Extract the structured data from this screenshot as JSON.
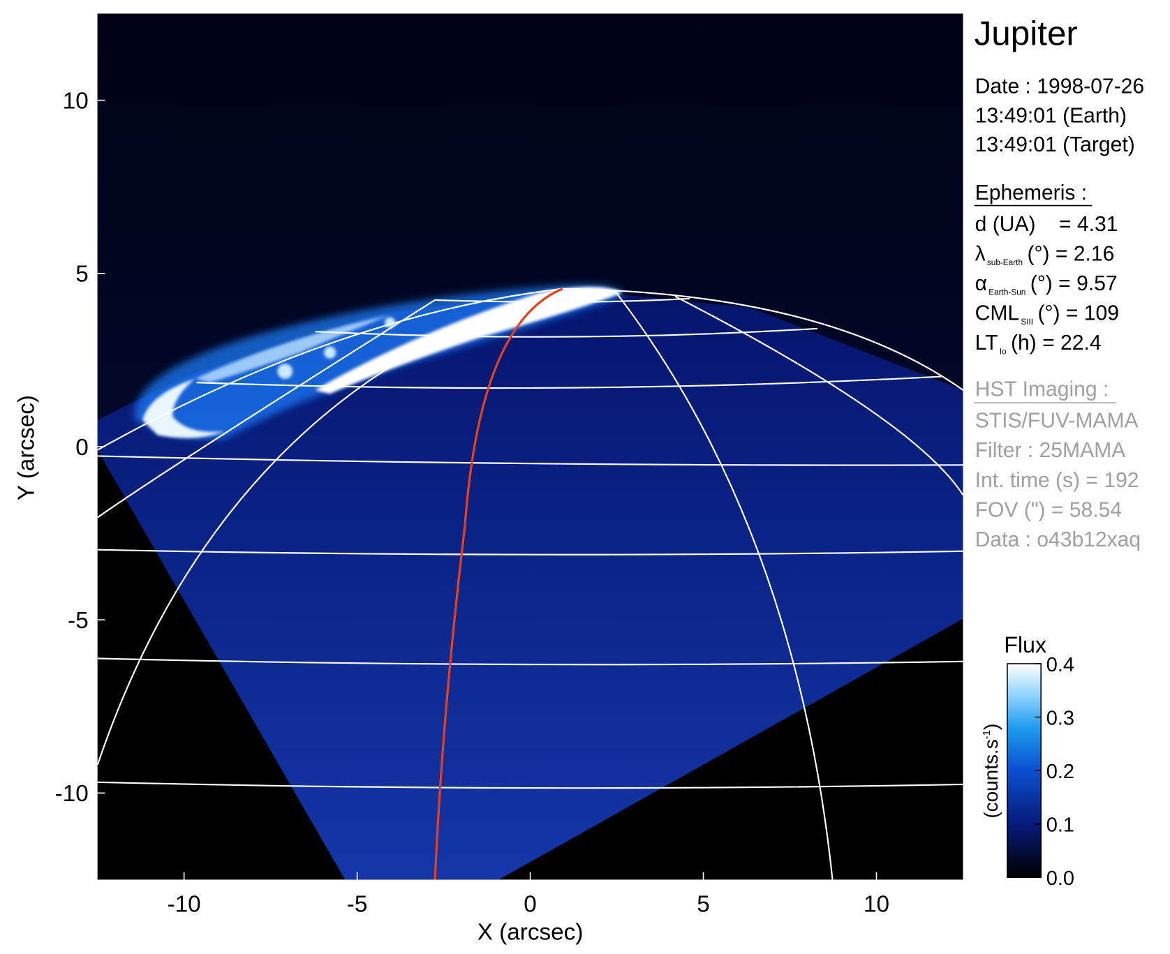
{
  "chart_data": {
    "type": "image",
    "title": "Jupiter",
    "xlabel": "X (arcsec)",
    "ylabel": "Y (arcsec)",
    "xlim": [
      -12.5,
      12.5
    ],
    "ylim": [
      -12.5,
      12.5
    ],
    "xticks": [
      -10,
      -5,
      0,
      5,
      10
    ],
    "yticks": [
      -10,
      -5,
      0,
      5,
      10
    ],
    "observation": [
      "Date : 1998-07-26",
      "13:49:01 (Earth)",
      "13:49:01 (Target)"
    ],
    "ephemeris_title": "Ephemeris :",
    "ephemeris": [
      {
        "text": "d (UA)    = 4.31"
      },
      {
        "symbol": "λ",
        "sub": "sub-Earth",
        "text": "(°) = 2.16"
      },
      {
        "symbol": "α",
        "sub": "Earth-Sun",
        "text": "(°) = 9.57"
      },
      {
        "symbol": "CML",
        "sub": "SIII",
        "text": "(°) = 109"
      },
      {
        "symbol": "LT",
        "sub": "Io",
        "text": "(h) = 22.4"
      }
    ],
    "imaging_title": "HST Imaging :",
    "imaging": [
      "STIS/FUV-MAMA",
      "Filter : 25MAMA",
      "Int. time (s) = 192",
      "FOV (\") = 58.54",
      "Data : o43b12xaq"
    ],
    "colorbar": {
      "title": "Flux",
      "label": "(counts.s",
      "label_sup": "-1",
      "label_end": ")",
      "clim": [
        0.0,
        0.4
      ],
      "ticks": [
        {
          "value": 0,
          "label": "0.0"
        },
        0.1,
        0.2,
        0.3,
        0.4
      ]
    }
  }
}
